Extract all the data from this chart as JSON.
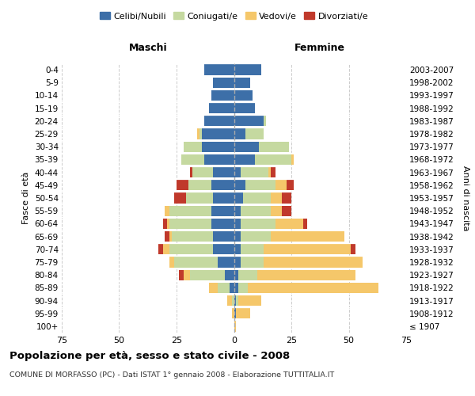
{
  "age_groups": [
    "100+",
    "95-99",
    "90-94",
    "85-89",
    "80-84",
    "75-79",
    "70-74",
    "65-69",
    "60-64",
    "55-59",
    "50-54",
    "45-49",
    "40-44",
    "35-39",
    "30-34",
    "25-29",
    "20-24",
    "15-19",
    "10-14",
    "5-9",
    "0-4"
  ],
  "birth_years": [
    "≤ 1907",
    "1908-1912",
    "1913-1917",
    "1918-1922",
    "1923-1927",
    "1928-1932",
    "1933-1937",
    "1938-1942",
    "1943-1947",
    "1948-1952",
    "1953-1957",
    "1958-1962",
    "1963-1967",
    "1968-1972",
    "1973-1977",
    "1978-1982",
    "1983-1987",
    "1988-1992",
    "1993-1997",
    "1998-2002",
    "2003-2007"
  ],
  "maschi": {
    "celibi": [
      0,
      0,
      0,
      2,
      4,
      7,
      9,
      9,
      10,
      10,
      9,
      10,
      9,
      13,
      14,
      14,
      13,
      11,
      10,
      9,
      13
    ],
    "coniugati": [
      0,
      0,
      1,
      5,
      15,
      19,
      19,
      18,
      18,
      18,
      12,
      10,
      9,
      10,
      8,
      1,
      0,
      0,
      0,
      0,
      0
    ],
    "vedovi": [
      0,
      1,
      2,
      4,
      3,
      2,
      3,
      1,
      1,
      2,
      0,
      0,
      0,
      0,
      0,
      1,
      0,
      0,
      0,
      0,
      0
    ],
    "divorziati": [
      0,
      0,
      0,
      0,
      2,
      0,
      2,
      2,
      2,
      0,
      5,
      5,
      1,
      0,
      0,
      0,
      0,
      0,
      0,
      0,
      0
    ]
  },
  "femmine": {
    "nubili": [
      0,
      1,
      1,
      2,
      2,
      3,
      3,
      3,
      3,
      3,
      4,
      5,
      3,
      9,
      11,
      5,
      13,
      9,
      8,
      7,
      12
    ],
    "coniugate": [
      0,
      0,
      1,
      4,
      8,
      10,
      10,
      13,
      15,
      13,
      12,
      13,
      12,
      16,
      13,
      8,
      1,
      0,
      0,
      0,
      0
    ],
    "vedove": [
      1,
      6,
      10,
      57,
      43,
      43,
      38,
      32,
      12,
      5,
      5,
      5,
      1,
      1,
      0,
      0,
      0,
      0,
      0,
      0,
      0
    ],
    "divorziate": [
      0,
      0,
      0,
      0,
      0,
      0,
      2,
      0,
      2,
      4,
      4,
      3,
      2,
      0,
      0,
      0,
      0,
      0,
      0,
      0,
      0
    ]
  },
  "colors": {
    "celibi": "#3d6fa8",
    "coniugati": "#c5d9a0",
    "vedovi": "#f5c76a",
    "divorziati": "#c0392b"
  },
  "xlim": 75,
  "title": "Popolazione per età, sesso e stato civile - 2008",
  "subtitle": "COMUNE DI MORFASSO (PC) - Dati ISTAT 1° gennaio 2008 - Elaborazione TUTTITALIA.IT",
  "ylabel_left": "Fasce di età",
  "ylabel_right": "Anni di nascita",
  "xlabel_left": "Maschi",
  "xlabel_right": "Femmine",
  "legend_labels": [
    "Celibi/Nubili",
    "Coniugati/e",
    "Vedovi/e",
    "Divorziati/e"
  ],
  "background_color": "#ffffff",
  "grid_color": "#cccccc"
}
